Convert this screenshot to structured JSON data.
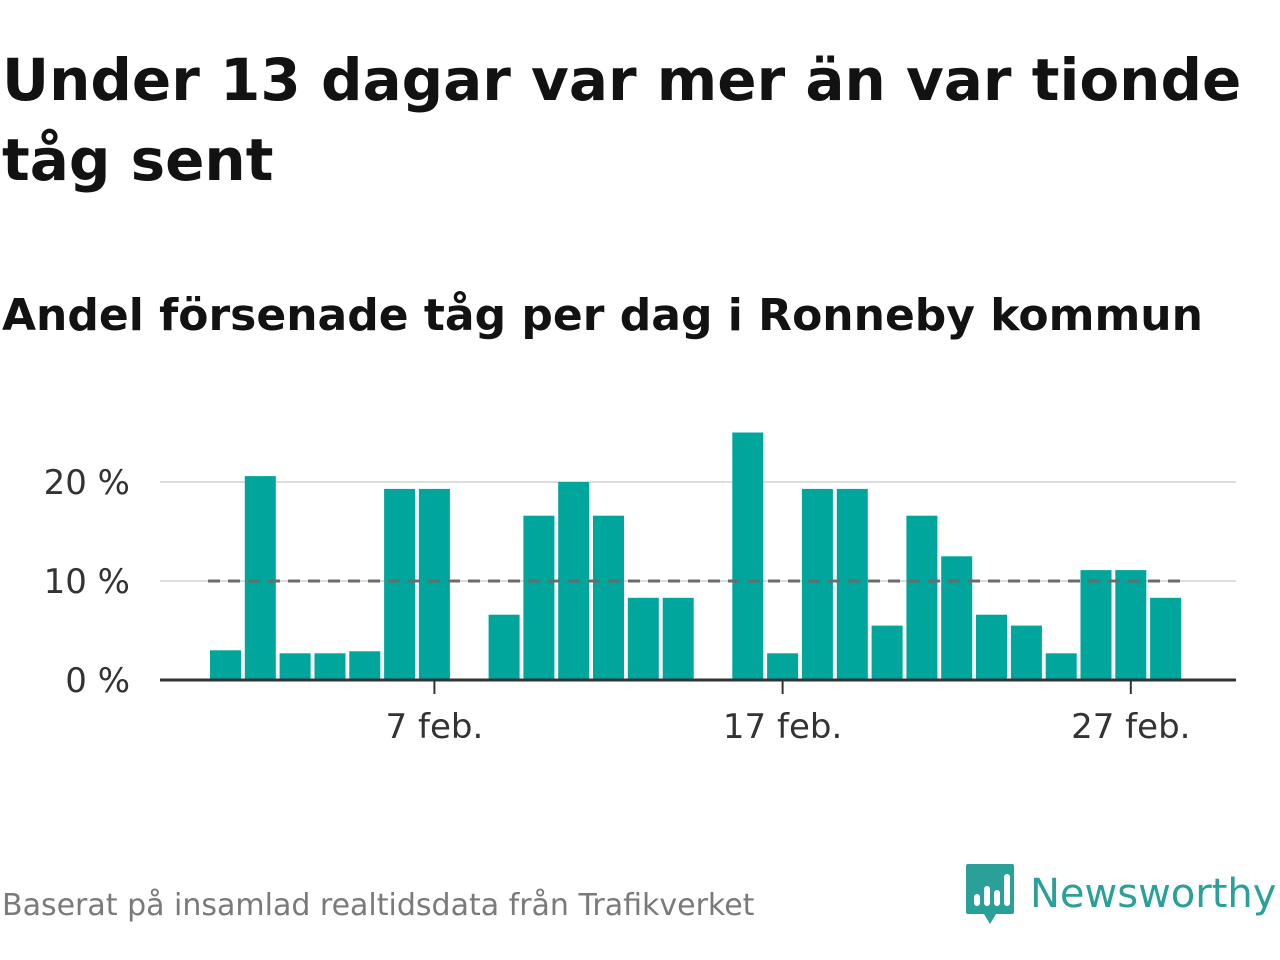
{
  "header": {
    "title": "Under 13 dagar var mer än var tionde tåg sent",
    "subtitle": "Andel försenade tåg per dag i Ronneby kommun"
  },
  "footer": {
    "source": "Baserat på insamlad realtidsdata från Trafikverket",
    "brand": "Newsworthy",
    "brand_color": "#2aa198"
  },
  "chart_data": {
    "type": "bar",
    "title": "Andel försenade tåg per dag i Ronneby kommun",
    "xlabel": "",
    "ylabel": "",
    "x": [
      "1 feb.",
      "2 feb.",
      "3 feb.",
      "4 feb.",
      "5 feb.",
      "6 feb.",
      "7 feb.",
      "8 feb.",
      "9 feb.",
      "10 feb.",
      "11 feb.",
      "12 feb.",
      "13 feb.",
      "14 feb.",
      "15 feb.",
      "16 feb.",
      "17 feb.",
      "18 feb.",
      "19 feb.",
      "20 feb.",
      "21 feb.",
      "22 feb.",
      "23 feb.",
      "24 feb.",
      "25 feb.",
      "26 feb.",
      "27 feb.",
      "28 feb.",
      "29 feb."
    ],
    "values": [
      3.0,
      20.6,
      2.7,
      2.7,
      2.9,
      19.3,
      19.3,
      null,
      6.6,
      16.6,
      20.0,
      16.6,
      8.3,
      8.3,
      null,
      25.0,
      2.7,
      19.3,
      19.3,
      5.5,
      16.6,
      12.5,
      6.6,
      5.5,
      2.7,
      11.1,
      11.1,
      8.3,
      null
    ],
    "xtick_labels": [
      "7 feb.",
      "17 feb.",
      "27 feb."
    ],
    "ytick_labels": [
      "0 %",
      "10 %",
      "20 %"
    ],
    "yticks": [
      0,
      10,
      20
    ],
    "ylim": [
      0,
      27
    ],
    "threshold": 10,
    "bar_color": "#00a59c",
    "threshold_color": "#6b6b6b",
    "grid": true,
    "legend": "none"
  }
}
